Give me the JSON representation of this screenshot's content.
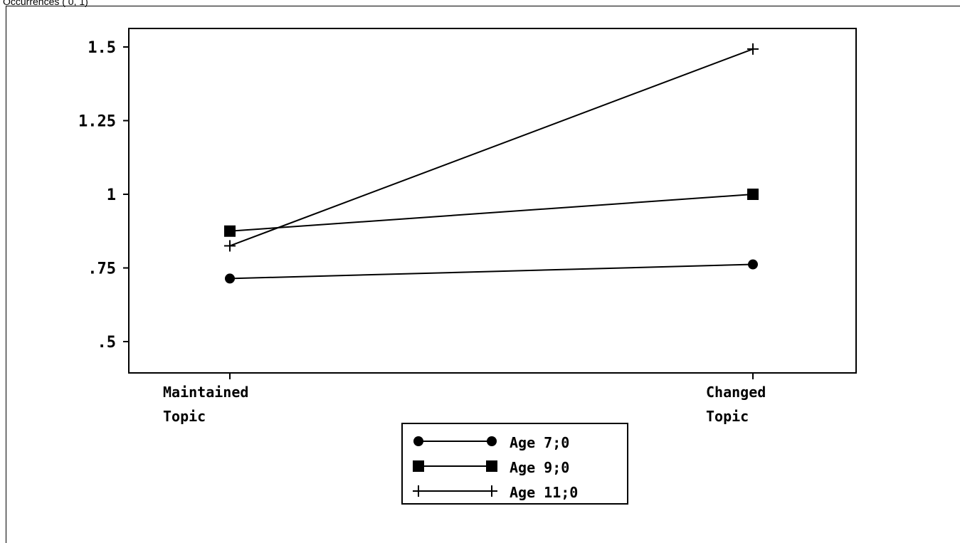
{
  "header": {
    "text": "Occurrences (  0, 1)"
  },
  "chart_data": {
    "type": "line",
    "categories": [
      "Maintained Topic",
      "Changed Topic"
    ],
    "category_lines": [
      [
        "Maintained",
        "Topic"
      ],
      [
        "Changed",
        "Topic"
      ]
    ],
    "y_ticks": [
      0.5,
      0.75,
      1,
      1.25,
      1.5
    ],
    "y_tick_labels": [
      ".5",
      ".75",
      "1",
      "1.25",
      "1.5"
    ],
    "ylim": [
      0.43,
      1.6
    ],
    "title": "",
    "xlabel": "",
    "ylabel": "",
    "grid": false,
    "legend_position": "bottom-center",
    "series": [
      {
        "name": "Age 7;0",
        "marker": "circle",
        "values": [
          0.714,
          0.762
        ]
      },
      {
        "name": "Age 9;0",
        "marker": "square",
        "values": [
          0.875,
          1.0
        ]
      },
      {
        "name": "Age 11;0",
        "marker": "plus",
        "values": [
          0.825,
          1.493
        ]
      }
    ]
  },
  "colors": {
    "line": "#000000",
    "background": "#ffffff"
  }
}
